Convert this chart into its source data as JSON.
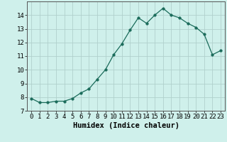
{
  "x": [
    0,
    1,
    2,
    3,
    4,
    5,
    6,
    7,
    8,
    9,
    10,
    11,
    12,
    13,
    14,
    15,
    16,
    17,
    18,
    19,
    20,
    21,
    22,
    23
  ],
  "y": [
    7.9,
    7.6,
    7.6,
    7.7,
    7.7,
    7.9,
    8.3,
    8.6,
    9.3,
    10.0,
    11.1,
    11.9,
    12.9,
    13.8,
    13.4,
    14.0,
    14.5,
    14.0,
    13.8,
    13.4,
    13.1,
    12.6,
    11.1,
    11.4
  ],
  "xlabel": "Humidex (Indice chaleur)",
  "xlim": [
    -0.5,
    23.5
  ],
  "ylim": [
    7,
    15
  ],
  "yticks": [
    7,
    8,
    9,
    10,
    11,
    12,
    13,
    14
  ],
  "xticks": [
    0,
    1,
    2,
    3,
    4,
    5,
    6,
    7,
    8,
    9,
    10,
    11,
    12,
    13,
    14,
    15,
    16,
    17,
    18,
    19,
    20,
    21,
    22,
    23
  ],
  "line_color": "#1a6b5a",
  "marker_size": 2.5,
  "bg_color": "#cff0eb",
  "grid_color": "#b0d0cc",
  "tick_fontsize": 6.5,
  "xlabel_fontsize": 7.5
}
